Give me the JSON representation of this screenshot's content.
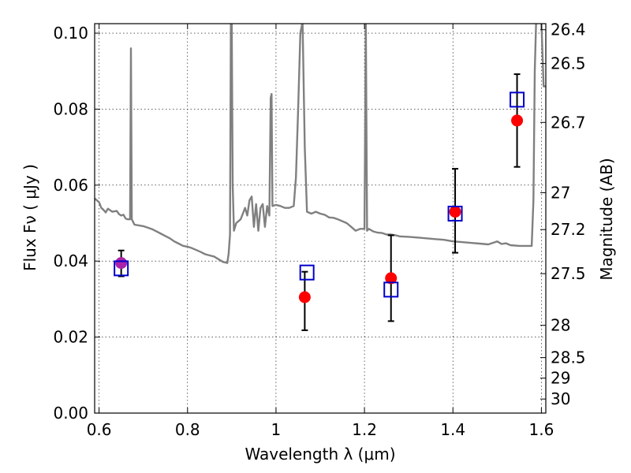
{
  "chart_data": {
    "type": "scatter",
    "xlabel": "Wavelength  λ (μm)",
    "ylabel": "Flux  Fν  ( μJy )",
    "y2label": "Magnitude (AB)",
    "xlim": [
      0.59,
      1.61
    ],
    "ylim": [
      0.0,
      0.1025
    ],
    "x_ticks": [
      0.6,
      0.8,
      1.0,
      1.2,
      1.4,
      1.6
    ],
    "x_tick_labels": [
      "0.6",
      "0.8",
      "1",
      "1.2",
      "1.4",
      "1.6"
    ],
    "y_ticks": [
      0.0,
      0.02,
      0.04,
      0.06,
      0.08,
      0.1
    ],
    "y_tick_labels": [
      "0.00",
      "0.02",
      "0.04",
      "0.06",
      "0.08",
      "0.10"
    ],
    "y2_ticks": [
      {
        "label": "26.4",
        "flux": 0.1009
      },
      {
        "label": "26.5",
        "flux": 0.092
      },
      {
        "label": "26.7",
        "flux": 0.0765
      },
      {
        "label": "27",
        "flux": 0.058
      },
      {
        "label": "27.2",
        "flux": 0.0483
      },
      {
        "label": "27.5",
        "flux": 0.0367
      },
      {
        "label": "28",
        "flux": 0.0231
      },
      {
        "label": "28.5",
        "flux": 0.0146
      },
      {
        "label": "29",
        "flux": 0.0092
      },
      {
        "label": "30",
        "flux": 0.0037
      }
    ],
    "grid": true,
    "colors": {
      "model": "#808080",
      "observed": "#ff0000",
      "observed_first": "#aa22aa",
      "synthetic": "#0000cc",
      "errorbar": "#000000"
    },
    "series": [
      {
        "type": "line",
        "points": [
          [
            0.59,
            0.0565
          ],
          [
            0.6,
            0.0555
          ],
          [
            0.605,
            0.054
          ],
          [
            0.61,
            0.0535
          ],
          [
            0.615,
            0.0528
          ],
          [
            0.62,
            0.0538
          ],
          [
            0.63,
            0.053
          ],
          [
            0.64,
            0.0532
          ],
          [
            0.645,
            0.0524
          ],
          [
            0.65,
            0.052
          ],
          [
            0.655,
            0.0522
          ],
          [
            0.66,
            0.0512
          ],
          [
            0.665,
            0.051
          ],
          [
            0.67,
            0.051
          ],
          [
            0.672,
            0.096
          ],
          [
            0.674,
            0.051
          ],
          [
            0.68,
            0.0496
          ],
          [
            0.69,
            0.0494
          ],
          [
            0.7,
            0.0492
          ],
          [
            0.71,
            0.0488
          ],
          [
            0.72,
            0.0484
          ],
          [
            0.73,
            0.0478
          ],
          [
            0.74,
            0.0472
          ],
          [
            0.75,
            0.0466
          ],
          [
            0.76,
            0.046
          ],
          [
            0.77,
            0.0452
          ],
          [
            0.78,
            0.0446
          ],
          [
            0.79,
            0.044
          ],
          [
            0.8,
            0.0438
          ],
          [
            0.81,
            0.0434
          ],
          [
            0.82,
            0.0429
          ],
          [
            0.83,
            0.0424
          ],
          [
            0.84,
            0.0418
          ],
          [
            0.85,
            0.0415
          ],
          [
            0.86,
            0.0412
          ],
          [
            0.87,
            0.0405
          ],
          [
            0.88,
            0.0398
          ],
          [
            0.89,
            0.0395
          ],
          [
            0.893,
            0.042
          ],
          [
            0.896,
            0.047
          ],
          [
            0.898,
            0.103
          ],
          [
            0.9,
            0.103
          ],
          [
            0.902,
            0.06
          ],
          [
            0.905,
            0.048
          ],
          [
            0.91,
            0.05
          ],
          [
            0.92,
            0.051
          ],
          [
            0.925,
            0.0525
          ],
          [
            0.93,
            0.054
          ],
          [
            0.935,
            0.052
          ],
          [
            0.94,
            0.056
          ],
          [
            0.945,
            0.057
          ],
          [
            0.95,
            0.049
          ],
          [
            0.955,
            0.055
          ],
          [
            0.96,
            0.048
          ],
          [
            0.965,
            0.054
          ],
          [
            0.97,
            0.055
          ],
          [
            0.975,
            0.049
          ],
          [
            0.98,
            0.0545
          ],
          [
            0.985,
            0.052
          ],
          [
            0.988,
            0.083
          ],
          [
            0.99,
            0.084
          ],
          [
            0.992,
            0.0545
          ],
          [
            1.0,
            0.0548
          ],
          [
            1.01,
            0.0545
          ],
          [
            1.02,
            0.054
          ],
          [
            1.03,
            0.054
          ],
          [
            1.04,
            0.0545
          ],
          [
            1.045,
            0.062
          ],
          [
            1.05,
            0.08
          ],
          [
            1.055,
            0.1
          ],
          [
            1.06,
            0.103
          ],
          [
            1.065,
            0.07
          ],
          [
            1.07,
            0.053
          ],
          [
            1.08,
            0.0525
          ],
          [
            1.09,
            0.053
          ],
          [
            1.1,
            0.0525
          ],
          [
            1.11,
            0.0522
          ],
          [
            1.12,
            0.0515
          ],
          [
            1.13,
            0.0514
          ],
          [
            1.14,
            0.051
          ],
          [
            1.15,
            0.0505
          ],
          [
            1.16,
            0.05
          ],
          [
            1.17,
            0.049
          ],
          [
            1.18,
            0.048
          ],
          [
            1.19,
            0.0485
          ],
          [
            1.2,
            0.0485
          ],
          [
            1.203,
            0.103
          ],
          [
            1.206,
            0.048
          ],
          [
            1.21,
            0.0485
          ],
          [
            1.22,
            0.0478
          ],
          [
            1.23,
            0.0475
          ],
          [
            1.24,
            0.0474
          ],
          [
            1.25,
            0.047
          ],
          [
            1.26,
            0.047
          ],
          [
            1.27,
            0.0468
          ],
          [
            1.28,
            0.0465
          ],
          [
            1.3,
            0.0464
          ],
          [
            1.32,
            0.0462
          ],
          [
            1.34,
            0.046
          ],
          [
            1.36,
            0.0458
          ],
          [
            1.38,
            0.0456
          ],
          [
            1.4,
            0.0452
          ],
          [
            1.42,
            0.045
          ],
          [
            1.44,
            0.0448
          ],
          [
            1.46,
            0.0446
          ],
          [
            1.48,
            0.0444
          ],
          [
            1.5,
            0.0452
          ],
          [
            1.51,
            0.0445
          ],
          [
            1.52,
            0.0447
          ],
          [
            1.53,
            0.0442
          ],
          [
            1.55,
            0.044
          ],
          [
            1.57,
            0.044
          ],
          [
            1.578,
            0.044
          ],
          [
            1.582,
            0.056
          ],
          [
            1.585,
            0.09
          ],
          [
            1.588,
            0.103
          ],
          [
            1.6,
            0.103
          ],
          [
            1.605,
            0.086
          ],
          [
            1.61,
            0.086
          ]
        ]
      },
      {
        "type": "errorbar_points",
        "points": [
          {
            "x": 0.65,
            "y": 0.0395,
            "yerr_low": 0.036,
            "yerr_high": 0.0428
          },
          {
            "x": 1.065,
            "y": 0.0305,
            "yerr_low": 0.0218,
            "yerr_high": 0.0372
          },
          {
            "x": 1.26,
            "y": 0.0355,
            "yerr_low": 0.0242,
            "yerr_high": 0.0468
          },
          {
            "x": 1.405,
            "y": 0.053,
            "yerr_low": 0.0422,
            "yerr_high": 0.0643
          },
          {
            "x": 1.545,
            "y": 0.077,
            "yerr_low": 0.0648,
            "yerr_high": 0.0892
          }
        ]
      },
      {
        "type": "square_points",
        "points": [
          {
            "x": 0.65,
            "y": 0.0381
          },
          {
            "x": 1.07,
            "y": 0.037
          },
          {
            "x": 1.26,
            "y": 0.0325
          },
          {
            "x": 1.405,
            "y": 0.0525
          },
          {
            "x": 1.545,
            "y": 0.0825
          }
        ]
      }
    ]
  }
}
